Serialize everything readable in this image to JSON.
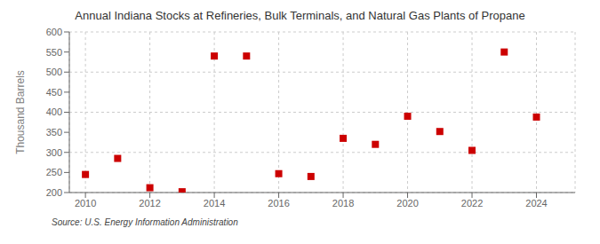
{
  "chart_data": {
    "type": "scatter",
    "title": "Annual Indiana Stocks at Refineries, Bulk Terminals, and Natural Gas Plants of Propane",
    "ylabel": "Thousand Barrels",
    "annotations": [
      "Source: U.S. Energy Information Administration"
    ],
    "x": [
      2010,
      2011,
      2012,
      2013,
      2014,
      2015,
      2016,
      2017,
      2018,
      2019,
      2020,
      2021,
      2022,
      2023,
      2024
    ],
    "values": [
      245,
      285,
      212,
      202,
      540,
      540,
      247,
      240,
      335,
      320,
      390,
      352,
      305,
      550,
      388
    ],
    "color": "#cc0000",
    "marker": "square",
    "xlim": [
      2009.5,
      2025.2
    ],
    "xticks": [
      2010,
      2012,
      2014,
      2016,
      2018,
      2020,
      2022,
      2024
    ],
    "ylim": [
      200,
      600
    ],
    "yticks": [
      200,
      250,
      300,
      350,
      400,
      450,
      500,
      550,
      600
    ],
    "grid": true
  }
}
